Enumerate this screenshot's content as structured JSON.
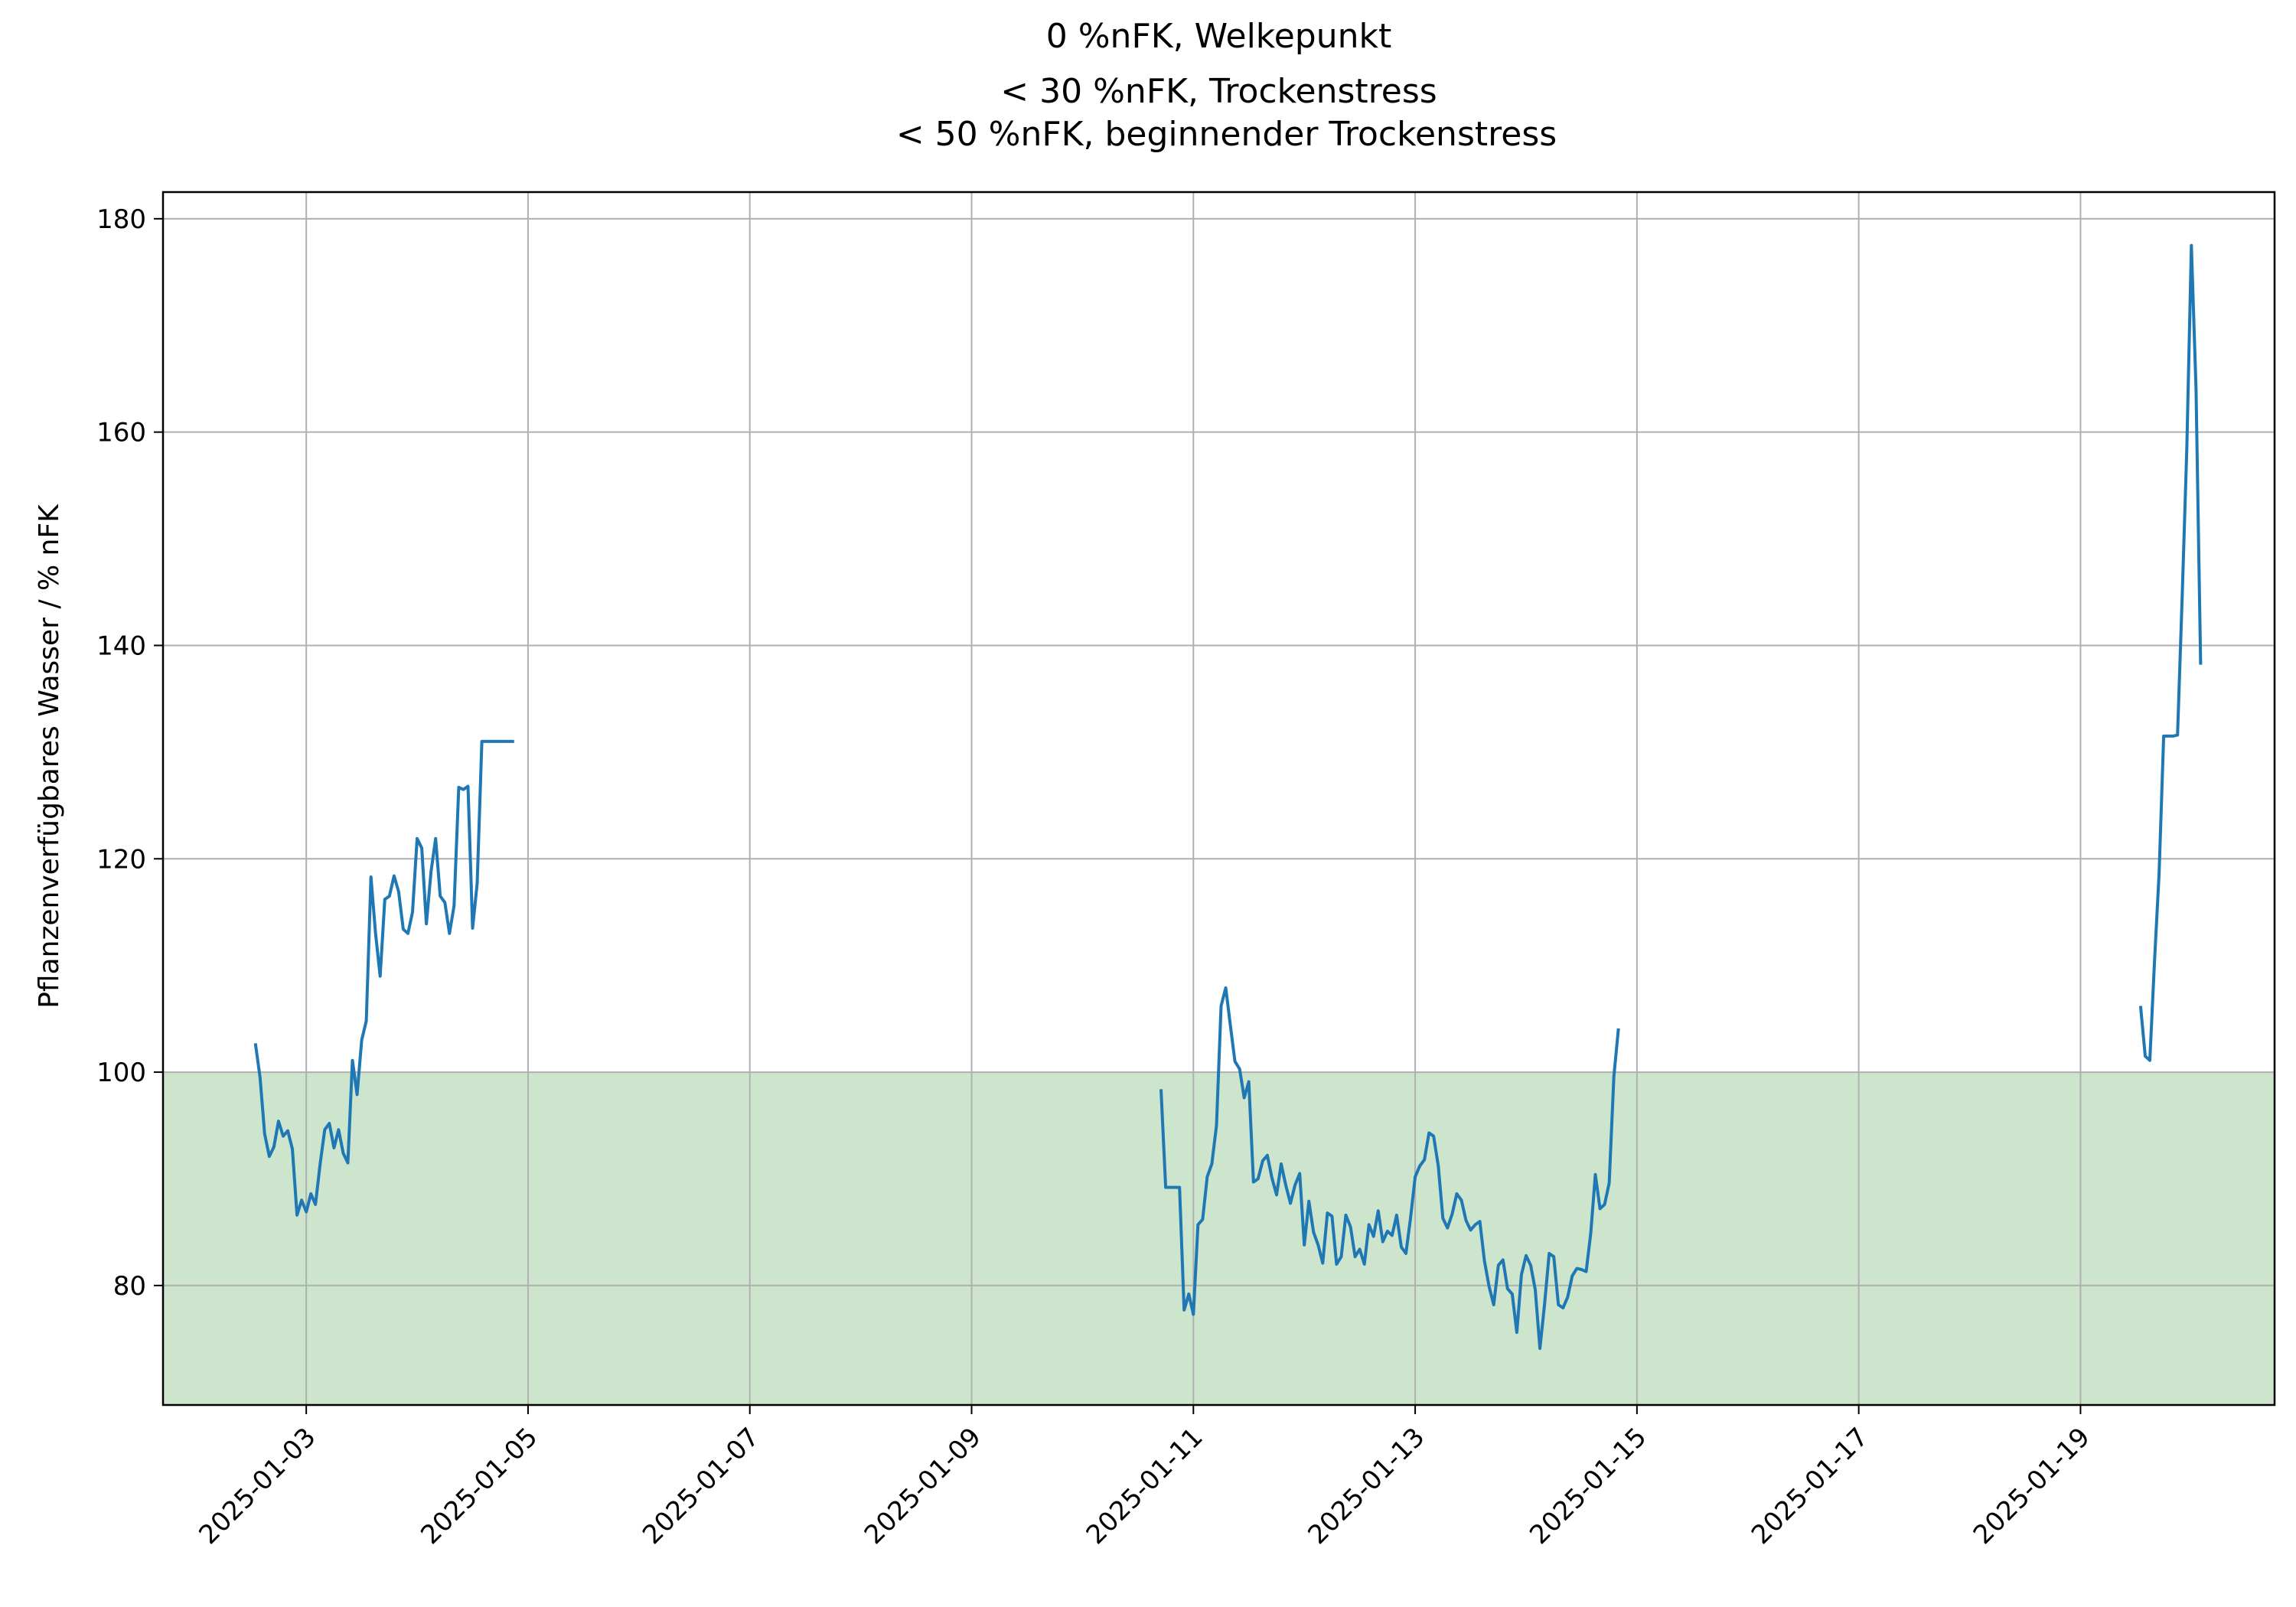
{
  "chart_data": {
    "type": "line",
    "title_lines": [
      "0 %nFK, Welkepunkt",
      "< 30 %nFK, Trockenstress",
      "< 50 %nFK, beginnender Trockenstress"
    ],
    "xlabel": "",
    "ylabel": "Pflanzenverfügbares Wasser / % nFK",
    "xlim": [
      "2025-01-01T17:00",
      "2025-01-20T18:00"
    ],
    "ylim": [
      68.8,
      182.5
    ],
    "x_ticks": [
      "2025-01-03",
      "2025-01-05",
      "2025-01-07",
      "2025-01-09",
      "2025-01-11",
      "2025-01-13",
      "2025-01-15",
      "2025-01-17",
      "2025-01-19"
    ],
    "y_ticks": [
      80,
      100,
      120,
      140,
      160,
      180
    ],
    "grid": true,
    "bands": [
      {
        "y0": 0,
        "y1": 100,
        "color": "#cde5cd"
      }
    ],
    "colors": {
      "series": "#1f77b4"
    },
    "series": [
      {
        "segments": [
          [
            [
              "2025-01-02T13:00",
              102.7
            ],
            [
              "2025-01-02T14:00",
              99.5
            ],
            [
              "2025-01-02T15:00",
              94.2
            ],
            [
              "2025-01-02T16:00",
              92.1
            ],
            [
              "2025-01-02T17:00",
              93.0
            ],
            [
              "2025-01-02T18:00",
              95.4
            ],
            [
              "2025-01-02T19:00",
              94.0
            ],
            [
              "2025-01-02T20:00",
              94.5
            ],
            [
              "2025-01-02T21:00",
              92.8
            ],
            [
              "2025-01-02T22:00",
              86.6
            ],
            [
              "2025-01-02T23:00",
              88.0
            ],
            [
              "2025-01-03T00:00",
              86.9
            ],
            [
              "2025-01-03T01:00",
              88.6
            ],
            [
              "2025-01-03T02:00",
              87.6
            ],
            [
              "2025-01-03T03:00",
              91.4
            ],
            [
              "2025-01-03T04:00",
              94.6
            ],
            [
              "2025-01-03T05:00",
              95.2
            ],
            [
              "2025-01-03T06:00",
              92.9
            ],
            [
              "2025-01-03T07:00",
              94.6
            ],
            [
              "2025-01-03T08:00",
              92.4
            ],
            [
              "2025-01-03T09:00",
              91.5
            ],
            [
              "2025-01-03T10:00",
              101.1
            ],
            [
              "2025-01-03T11:00",
              97.9
            ],
            [
              "2025-01-03T12:00",
              103.0
            ],
            [
              "2025-01-03T13:00",
              104.8
            ],
            [
              "2025-01-03T14:00",
              118.3
            ],
            [
              "2025-01-03T15:00",
              113.0
            ],
            [
              "2025-01-03T16:00",
              109.0
            ],
            [
              "2025-01-03T17:00",
              116.2
            ],
            [
              "2025-01-03T18:00",
              116.5
            ],
            [
              "2025-01-03T19:00",
              118.4
            ],
            [
              "2025-01-03T20:00",
              116.9
            ],
            [
              "2025-01-03T21:00",
              113.4
            ],
            [
              "2025-01-03T22:00",
              113.0
            ],
            [
              "2025-01-03T23:00",
              115.0
            ],
            [
              "2025-01-04T00:00",
              121.9
            ],
            [
              "2025-01-04T01:00",
              121.0
            ],
            [
              "2025-01-04T02:00",
              113.9
            ],
            [
              "2025-01-04T03:00",
              118.8
            ],
            [
              "2025-01-04T04:00",
              121.9
            ],
            [
              "2025-01-04T05:00",
              116.5
            ],
            [
              "2025-01-04T06:00",
              115.9
            ],
            [
              "2025-01-04T07:00",
              113.0
            ],
            [
              "2025-01-04T08:00",
              115.6
            ],
            [
              "2025-01-04T09:00",
              126.7
            ],
            [
              "2025-01-04T10:00",
              126.5
            ],
            [
              "2025-01-04T11:00",
              126.8
            ],
            [
              "2025-01-04T12:00",
              113.5
            ],
            [
              "2025-01-04T13:00",
              117.7
            ],
            [
              "2025-01-04T14:00",
              131.0
            ],
            [
              "2025-01-04T15:00",
              131.0
            ],
            [
              "2025-01-04T17:00",
              131.0
            ],
            [
              "2025-01-04T19:00",
              131.0
            ],
            [
              "2025-01-04T21:00",
              131.0
            ]
          ],
          [
            [
              "2025-01-10T17:00",
              98.4
            ],
            [
              "2025-01-10T18:00",
              89.2
            ],
            [
              "2025-01-10T19:00",
              89.2
            ],
            [
              "2025-01-10T20:00",
              89.2
            ],
            [
              "2025-01-10T21:00",
              89.2
            ],
            [
              "2025-01-10T22:00",
              77.7
            ],
            [
              "2025-01-10T23:00",
              79.2
            ],
            [
              "2025-01-11T00:00",
              77.3
            ],
            [
              "2025-01-11T01:00",
              85.7
            ],
            [
              "2025-01-11T02:00",
              86.2
            ],
            [
              "2025-01-11T03:00",
              90.2
            ],
            [
              "2025-01-11T04:00",
              91.4
            ],
            [
              "2025-01-11T05:00",
              95.0
            ],
            [
              "2025-01-11T06:00",
              106.2
            ],
            [
              "2025-01-11T07:00",
              107.9
            ],
            [
              "2025-01-11T08:00",
              104.4
            ],
            [
              "2025-01-11T09:00",
              101.0
            ],
            [
              "2025-01-11T10:00",
              100.3
            ],
            [
              "2025-01-11T11:00",
              97.6
            ],
            [
              "2025-01-11T12:00",
              99.1
            ],
            [
              "2025-01-11T13:00",
              89.7
            ],
            [
              "2025-01-11T14:00",
              90.0
            ],
            [
              "2025-01-11T15:00",
              91.7
            ],
            [
              "2025-01-11T16:00",
              92.2
            ],
            [
              "2025-01-11T17:00",
              90.1
            ],
            [
              "2025-01-11T18:00",
              88.5
            ],
            [
              "2025-01-11T19:00",
              91.4
            ],
            [
              "2025-01-11T20:00",
              89.4
            ],
            [
              "2025-01-11T21:00",
              87.7
            ],
            [
              "2025-01-11T22:00",
              89.4
            ],
            [
              "2025-01-11T23:00",
              90.5
            ],
            [
              "2025-01-12T00:00",
              83.8
            ],
            [
              "2025-01-12T01:00",
              87.9
            ],
            [
              "2025-01-12T02:00",
              85.0
            ],
            [
              "2025-01-12T03:00",
              83.8
            ],
            [
              "2025-01-12T04:00",
              82.1
            ],
            [
              "2025-01-12T05:00",
              86.8
            ],
            [
              "2025-01-12T06:00",
              86.5
            ],
            [
              "2025-01-12T07:00",
              82.0
            ],
            [
              "2025-01-12T08:00",
              82.7
            ],
            [
              "2025-01-12T09:00",
              86.6
            ],
            [
              "2025-01-12T10:00",
              85.5
            ],
            [
              "2025-01-12T11:00",
              82.7
            ],
            [
              "2025-01-12T12:00",
              83.4
            ],
            [
              "2025-01-12T13:00",
              82.0
            ],
            [
              "2025-01-12T14:00",
              85.7
            ],
            [
              "2025-01-12T15:00",
              84.6
            ],
            [
              "2025-01-12T16:00",
              87.0
            ],
            [
              "2025-01-12T17:00",
              84.1
            ],
            [
              "2025-01-12T18:00",
              85.1
            ],
            [
              "2025-01-12T19:00",
              84.7
            ],
            [
              "2025-01-12T20:00",
              86.6
            ],
            [
              "2025-01-12T21:00",
              83.6
            ],
            [
              "2025-01-12T22:00",
              83.0
            ],
            [
              "2025-01-12T23:00",
              86.3
            ],
            [
              "2025-01-13T00:00",
              90.2
            ],
            [
              "2025-01-13T01:00",
              91.2
            ],
            [
              "2025-01-13T02:00",
              91.8
            ],
            [
              "2025-01-13T03:00",
              94.3
            ],
            [
              "2025-01-13T04:00",
              94.0
            ],
            [
              "2025-01-13T05:00",
              91.2
            ],
            [
              "2025-01-13T06:00",
              86.3
            ],
            [
              "2025-01-13T07:00",
              85.4
            ],
            [
              "2025-01-13T08:00",
              86.7
            ],
            [
              "2025-01-13T09:00",
              88.6
            ],
            [
              "2025-01-13T10:00",
              88.0
            ],
            [
              "2025-01-13T11:00",
              86.1
            ],
            [
              "2025-01-13T12:00",
              85.2
            ],
            [
              "2025-01-13T13:00",
              85.7
            ],
            [
              "2025-01-13T14:00",
              86.0
            ],
            [
              "2025-01-13T15:00",
              82.3
            ],
            [
              "2025-01-13T16:00",
              79.9
            ],
            [
              "2025-01-13T17:00",
              78.2
            ],
            [
              "2025-01-13T18:00",
              81.9
            ],
            [
              "2025-01-13T19:00",
              82.4
            ],
            [
              "2025-01-13T20:00",
              79.7
            ],
            [
              "2025-01-13T21:00",
              79.2
            ],
            [
              "2025-01-13T22:00",
              75.6
            ],
            [
              "2025-01-13T23:00",
              81.0
            ],
            [
              "2025-01-14T00:00",
              82.8
            ],
            [
              "2025-01-14T01:00",
              81.9
            ],
            [
              "2025-01-14T02:00",
              79.6
            ],
            [
              "2025-01-14T03:00",
              74.1
            ],
            [
              "2025-01-14T04:00",
              78.2
            ],
            [
              "2025-01-14T05:00",
              83.0
            ],
            [
              "2025-01-14T06:00",
              82.7
            ],
            [
              "2025-01-14T07:00",
              78.2
            ],
            [
              "2025-01-14T08:00",
              77.9
            ],
            [
              "2025-01-14T09:00",
              78.9
            ],
            [
              "2025-01-14T10:00",
              80.9
            ],
            [
              "2025-01-14T11:00",
              81.6
            ],
            [
              "2025-01-14T12:00",
              81.5
            ],
            [
              "2025-01-14T13:00",
              81.3
            ],
            [
              "2025-01-14T14:00",
              84.9
            ],
            [
              "2025-01-14T15:00",
              90.4
            ],
            [
              "2025-01-14T16:00",
              87.2
            ],
            [
              "2025-01-14T17:00",
              87.6
            ],
            [
              "2025-01-14T18:00",
              89.6
            ],
            [
              "2025-01-14T19:00",
              99.6
            ],
            [
              "2025-01-14T20:00",
              104.1
            ]
          ],
          [
            [
              "2025-01-19T13:00",
              106.2
            ],
            [
              "2025-01-19T14:00",
              101.5
            ],
            [
              "2025-01-19T15:00",
              101.1
            ],
            [
              "2025-01-19T16:00",
              110.2
            ],
            [
              "2025-01-19T17:00",
              118.6
            ],
            [
              "2025-01-19T18:00",
              131.5
            ],
            [
              "2025-01-19T19:00",
              131.5
            ],
            [
              "2025-01-19T20:00",
              131.5
            ],
            [
              "2025-01-19T21:00",
              131.6
            ],
            [
              "2025-01-19T22:00",
              144.6
            ],
            [
              "2025-01-19T23:00",
              158.4
            ],
            [
              "2025-01-20T00:00",
              177.5
            ],
            [
              "2025-01-20T01:00",
              164.0
            ],
            [
              "2025-01-20T02:00",
              138.2
            ]
          ]
        ]
      }
    ]
  }
}
